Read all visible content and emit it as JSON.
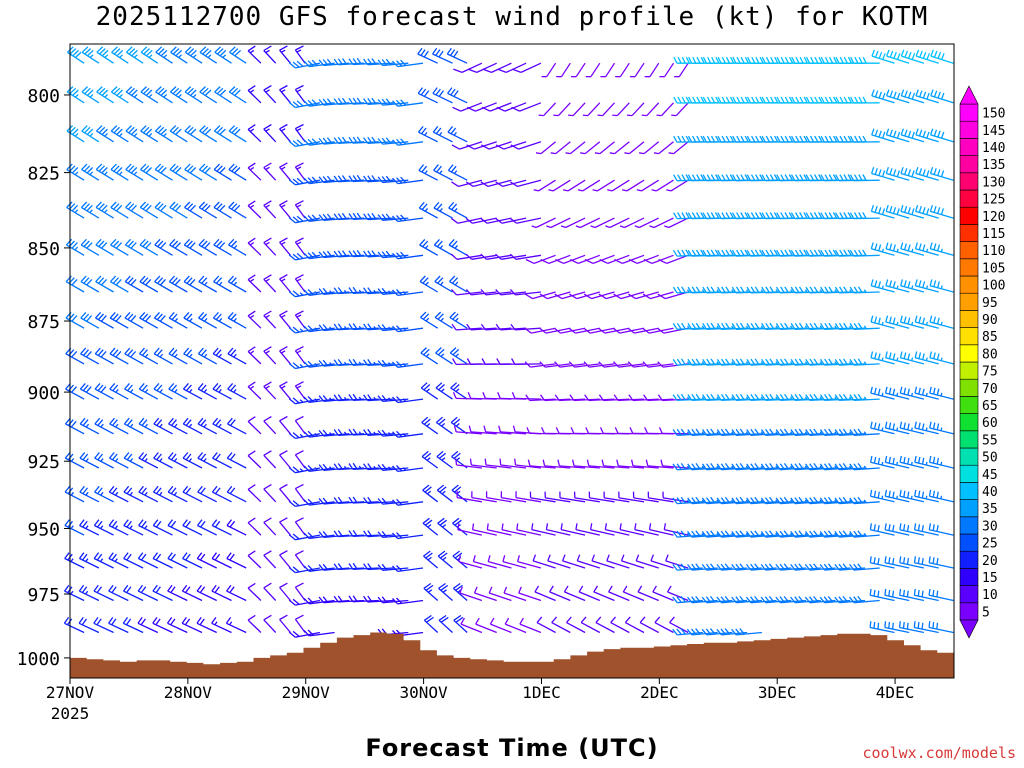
{
  "chart_data": {
    "type": "wind-barb-profile",
    "title": "2025112700 GFS forecast wind profile (kt) for KOTM",
    "xlabel": "Forecast Time (UTC)",
    "ylabel": "",
    "x_ticks": [
      "27NOV",
      "28NOV",
      "29NOV",
      "30NOV",
      "1DEC",
      "2DEC",
      "3DEC",
      "4DEC"
    ],
    "x_tick_sub": "2025",
    "x_range_days": [
      0,
      7.5
    ],
    "y_ticks": [
      800,
      825,
      850,
      875,
      900,
      925,
      950,
      975,
      1000
    ],
    "y_range_hpa": [
      784,
      1008
    ],
    "colorbar": {
      "units": "kt",
      "levels": [
        5,
        10,
        15,
        20,
        25,
        30,
        35,
        40,
        45,
        50,
        55,
        60,
        65,
        70,
        75,
        80,
        85,
        90,
        95,
        100,
        105,
        110,
        115,
        120,
        125,
        130,
        135,
        140,
        145,
        150
      ],
      "labels": [
        "5",
        "10",
        "15",
        "20",
        "25",
        "30",
        "35",
        "40",
        "45",
        "50",
        "55",
        "60",
        "65",
        "70",
        "75",
        "80",
        "85",
        "90",
        "95",
        "100",
        "105",
        "110",
        "115",
        "120",
        "125",
        "130",
        "135",
        "140",
        "145",
        "150"
      ],
      "colors": [
        "#7a00ff",
        "#5a00ff",
        "#3000ff",
        "#1020ff",
        "#0050ff",
        "#0078ff",
        "#00a0ff",
        "#00c0ff",
        "#00e0e0",
        "#00e0b0",
        "#00e070",
        "#10e030",
        "#40e010",
        "#80e000",
        "#c0f000",
        "#ffff00",
        "#ffe000",
        "#ffc000",
        "#ffa000",
        "#ff9000",
        "#ff7800",
        "#ff6000",
        "#ff3000",
        "#ff0000",
        "#ff0040",
        "#ff0070",
        "#ff00a0",
        "#ff00c0",
        "#ff00e0",
        "#ff00ff"
      ]
    },
    "surface_pressure_hpa": [
      1000,
      1000.5,
      1001,
      1001.5,
      1001,
      1001,
      1001.5,
      1002,
      1002.5,
      1002,
      1001.5,
      1000,
      999,
      998,
      996,
      994,
      992,
      991,
      990,
      990.5,
      993,
      997,
      999,
      1000,
      1000.5,
      1001,
      1001.5,
      1001.5,
      1001.5,
      1000.5,
      999,
      997.5,
      996.5,
      996,
      996,
      995.5,
      995,
      994.5,
      994,
      994,
      993.5,
      993,
      992.5,
      992,
      991.5,
      991,
      990.5,
      990.5,
      991,
      993,
      995,
      997,
      998
    ]
  },
  "credit": "coolwx.com/models"
}
